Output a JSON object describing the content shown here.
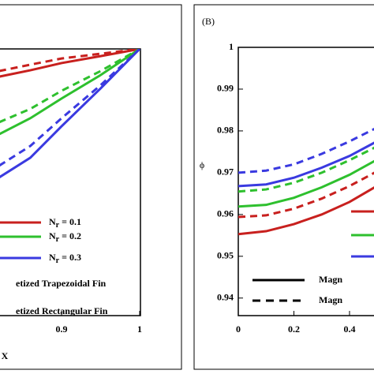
{
  "chart_data": [
    {
      "type": "line",
      "xlabel": "X",
      "xlim": [
        0.8212,
        1
      ],
      "ylim": [
        0,
        1
      ],
      "xticks": [
        0.9,
        1
      ],
      "x": [
        0.82,
        0.86,
        0.9,
        0.95,
        1
      ],
      "series": [
        {
          "color": "#c8201e",
          "dash": false,
          "values": [
            0.896,
            0.92,
            0.947,
            0.973,
            1
          ]
        },
        {
          "color": "#c8201e",
          "dash": true,
          "values": [
            0.917,
            0.941,
            0.964,
            0.982,
            1
          ]
        },
        {
          "color": "#2ec02e",
          "dash": false,
          "values": [
            0.68,
            0.74,
            0.814,
            0.902,
            1
          ]
        },
        {
          "color": "#2ec02e",
          "dash": true,
          "values": [
            0.725,
            0.775,
            0.843,
            0.917,
            1
          ]
        },
        {
          "color": "#3a3ae0",
          "dash": false,
          "values": [
            0.518,
            0.592,
            0.71,
            0.852,
            1
          ]
        },
        {
          "color": "#3a3ae0",
          "dash": true,
          "values": [
            0.562,
            0.636,
            0.74,
            0.864,
            1
          ]
        }
      ],
      "legend_colors": [
        {
          "name": "Nr = 0.1",
          "color": "#c8201e"
        },
        {
          "name": "Nr = 0.2",
          "color": "#2ec02e"
        },
        {
          "name": "Nr = 0.3",
          "color": "#3a3ae0"
        }
      ],
      "legend_styles": [
        {
          "name": "etized Trapezoidal Fin",
          "dash": false
        },
        {
          "name": "etized Rectangular Fin",
          "dash": false
        }
      ]
    },
    {
      "type": "line",
      "panel_label": "(B)",
      "ylabel": "ϕ",
      "xlim": [
        0,
        0.488
      ],
      "ylim": [
        0.9358,
        1
      ],
      "xticks": [
        0,
        0.2,
        0.4
      ],
      "yticks": [
        0.94,
        0.95,
        0.96,
        0.97,
        0.98,
        0.99,
        1
      ],
      "x": [
        0,
        0.1,
        0.2,
        0.3,
        0.4,
        0.49
      ],
      "series": [
        {
          "color": "#c8201e",
          "dash": false,
          "values": [
            0.9553,
            0.956,
            0.9577,
            0.96,
            0.963,
            0.9665
          ]
        },
        {
          "color": "#c8201e",
          "dash": true,
          "values": [
            0.9594,
            0.9598,
            0.9614,
            0.9638,
            0.9668,
            0.97
          ]
        },
        {
          "color": "#2ec02e",
          "dash": false,
          "values": [
            0.9619,
            0.9623,
            0.964,
            0.9665,
            0.9695,
            0.9728
          ]
        },
        {
          "color": "#2ec02e",
          "dash": true,
          "values": [
            0.9655,
            0.966,
            0.9676,
            0.97,
            0.973,
            0.976
          ]
        },
        {
          "color": "#3a3ae0",
          "dash": false,
          "values": [
            0.9668,
            0.9672,
            0.9688,
            0.9712,
            0.974,
            0.9772
          ]
        },
        {
          "color": "#3a3ae0",
          "dash": true,
          "values": [
            0.97,
            0.9705,
            0.972,
            0.9745,
            0.9775,
            0.9805
          ]
        }
      ],
      "legend_styles": [
        {
          "name": "Magn",
          "dash": false
        },
        {
          "name": "Magn",
          "dash": true
        }
      ]
    }
  ]
}
